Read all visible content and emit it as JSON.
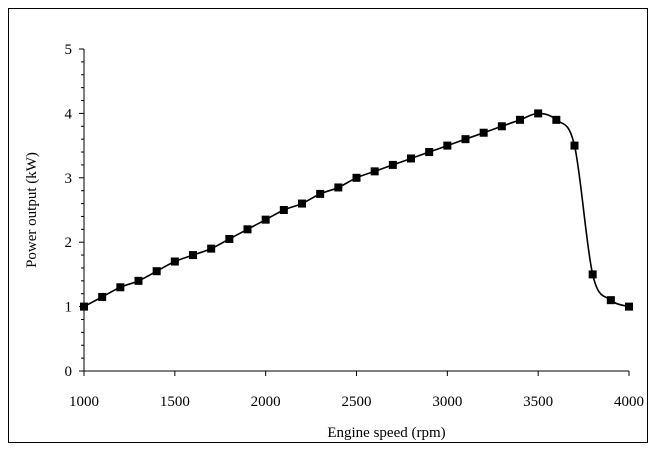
{
  "chart_data": {
    "type": "line",
    "title": "",
    "xlabel": "Engine speed (rpm)",
    "ylabel": "Power output (kW)",
    "xlim": [
      1000,
      4000
    ],
    "ylim": [
      0,
      5
    ],
    "x_ticks": [
      1000,
      1500,
      2000,
      2500,
      3000,
      3500,
      4000
    ],
    "y_ticks": [
      0,
      1,
      2,
      3,
      4,
      5
    ],
    "x_tick_labels": [
      "1000",
      "1500",
      "2000",
      "2500",
      "3000",
      "3500",
      "4000"
    ],
    "y_tick_labels": [
      "0",
      "1",
      "2",
      "3",
      "4",
      "5"
    ],
    "grid": false,
    "legend": "none",
    "marker": "square",
    "line_color": "#000000",
    "series": [
      {
        "x": [
          1000,
          1100,
          1200,
          1300,
          1400,
          1500,
          1600,
          1700,
          1800,
          1900,
          2000,
          2100,
          2200,
          2300,
          2400,
          2500,
          2600,
          2700,
          2800,
          2900,
          3000,
          3100,
          3200,
          3300,
          3400,
          3500,
          3600,
          3700,
          3800,
          3900,
          4000
        ],
        "y": [
          1.0,
          1.15,
          1.3,
          1.4,
          1.55,
          1.7,
          1.8,
          1.9,
          2.05,
          2.2,
          2.35,
          2.5,
          2.6,
          2.75,
          2.85,
          3.0,
          3.1,
          3.2,
          3.3,
          3.4,
          3.5,
          3.6,
          3.7,
          3.8,
          3.9,
          4.0,
          3.9,
          3.5,
          1.5,
          1.1,
          1.0
        ]
      }
    ]
  }
}
